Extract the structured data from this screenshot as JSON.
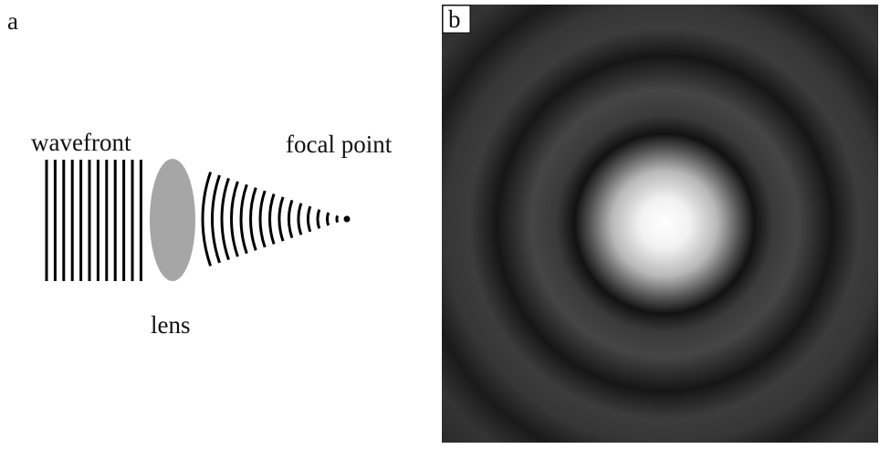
{
  "panel_a": {
    "label": "a",
    "wavefront": "wavefront",
    "focal_point": "focal point",
    "lens": "lens"
  },
  "panel_b": {
    "label": "b"
  }
}
